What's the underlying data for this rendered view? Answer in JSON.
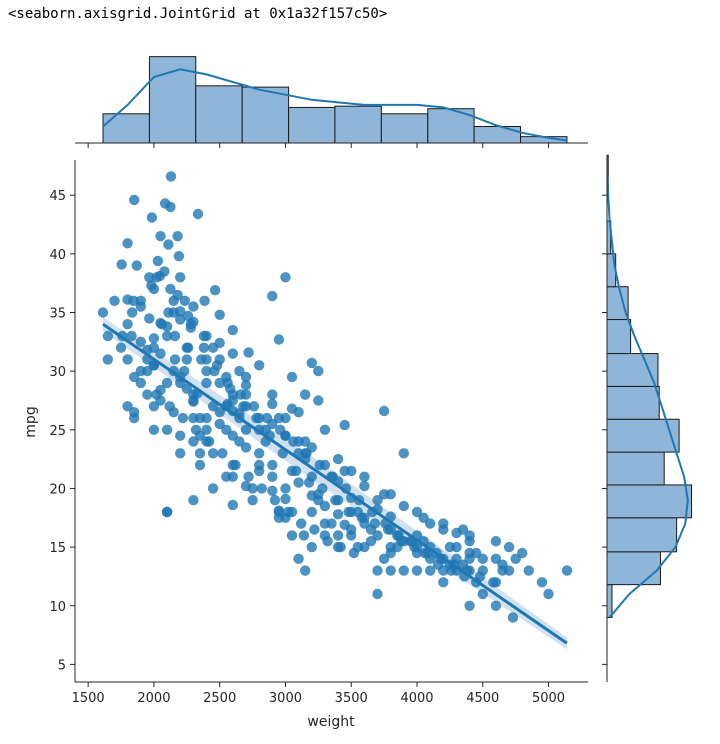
{
  "output_text": "<seaborn.axisgrid.JointGrid at 0x1a32f157c50>",
  "colors": {
    "accent": "#1f77b4",
    "hist_fill": "#8fb6d9",
    "ci_band": "#c6d9ec",
    "axis": "#262626"
  },
  "chart_data": {
    "type": "scatter",
    "title": "",
    "xlabel": "weight",
    "ylabel": "mpg",
    "xlim": [
      1400,
      5300
    ],
    "ylim": [
      3.5,
      48
    ],
    "xticks": [
      1500,
      2000,
      2500,
      3000,
      3500,
      4000,
      4500,
      5000
    ],
    "yticks": [
      5,
      10,
      15,
      20,
      25,
      30,
      35,
      40,
      45
    ],
    "regression": {
      "x": [
        1613,
        5140
      ],
      "y": [
        34.0,
        6.8
      ],
      "ci_halfwidth": [
        1.0,
        0.55
      ]
    },
    "marginal_x": {
      "type": "histogram+kde",
      "bin_edges": [
        1613,
        1966,
        2318,
        2671,
        3024,
        3376,
        3729,
        4082,
        4434,
        4787,
        5140
      ],
      "counts": [
        23,
        68,
        45,
        44,
        28,
        29,
        23,
        27,
        13,
        5
      ],
      "kde": [
        [
          1613,
          13
        ],
        [
          1800,
          30
        ],
        [
          2000,
          52
        ],
        [
          2200,
          58
        ],
        [
          2400,
          54
        ],
        [
          2600,
          48
        ],
        [
          2800,
          42
        ],
        [
          3000,
          38
        ],
        [
          3200,
          34
        ],
        [
          3400,
          32
        ],
        [
          3600,
          30
        ],
        [
          3800,
          30
        ],
        [
          4000,
          30
        ],
        [
          4200,
          28
        ],
        [
          4400,
          22
        ],
        [
          4600,
          14
        ],
        [
          4800,
          8
        ],
        [
          5000,
          4
        ],
        [
          5140,
          2
        ]
      ]
    },
    "marginal_y": {
      "type": "histogram+kde",
      "bin_edges": [
        9.0,
        11.8,
        14.6,
        17.5,
        20.3,
        23.1,
        25.9,
        28.7,
        31.5,
        34.4,
        37.2,
        40.0,
        42.8,
        45.6,
        48.4
      ],
      "counts": [
        4,
        43,
        56,
        68,
        46,
        58,
        42,
        41,
        19,
        17,
        7,
        3,
        0,
        1
      ],
      "kde": [
        [
          9,
          2
        ],
        [
          11,
          18
        ],
        [
          13,
          40
        ],
        [
          15,
          55
        ],
        [
          17,
          63
        ],
        [
          19,
          65
        ],
        [
          21,
          62
        ],
        [
          23,
          56
        ],
        [
          25,
          50
        ],
        [
          27,
          44
        ],
        [
          29,
          38
        ],
        [
          31,
          30
        ],
        [
          33,
          22
        ],
        [
          35,
          15
        ],
        [
          37,
          10
        ],
        [
          39,
          6
        ],
        [
          41,
          4
        ],
        [
          43,
          2
        ],
        [
          45,
          1
        ],
        [
          46.6,
          0.5
        ]
      ]
    },
    "points": [
      [
        2130,
        46.6
      ],
      [
        1850,
        44.6
      ],
      [
        2085,
        44.3
      ],
      [
        2125,
        44.0
      ],
      [
        1985,
        43.1
      ],
      [
        2335,
        43.4
      ],
      [
        2050,
        41.5
      ],
      [
        2180,
        41.5
      ],
      [
        1800,
        40.9
      ],
      [
        2110,
        40.8
      ],
      [
        2190,
        39.8
      ],
      [
        2030,
        39.4
      ],
      [
        1755,
        39.1
      ],
      [
        1870,
        39.0
      ],
      [
        3000,
        38.0
      ],
      [
        2045,
        38.1
      ],
      [
        1965,
        38.0
      ],
      [
        2020,
        38.0
      ],
      [
        2465,
        36.9
      ],
      [
        2125,
        37.0
      ],
      [
        1980,
        37.3
      ],
      [
        2900,
        36.4
      ],
      [
        1800,
        36.1
      ],
      [
        1845,
        36.0
      ],
      [
        2150,
        36.0
      ],
      [
        2235,
        36.0
      ],
      [
        2385,
        36.0
      ],
      [
        2110,
        35.0
      ],
      [
        1835,
        35.0
      ],
      [
        1613,
        35.0
      ],
      [
        2200,
        35.1
      ],
      [
        2500,
        34.8
      ],
      [
        1965,
        34.5
      ],
      [
        2260,
        34.7
      ],
      [
        2050,
        34.1
      ],
      [
        2300,
        34.2
      ],
      [
        1800,
        34.0
      ],
      [
        2200,
        34.4
      ],
      [
        2600,
        33.5
      ],
      [
        2400,
        33.0
      ],
      [
        1760,
        33.0
      ],
      [
        2100,
        33.8
      ],
      [
        2280,
        33.7
      ],
      [
        2000,
        32.8
      ],
      [
        2950,
        32.7
      ],
      [
        2500,
        32.4
      ],
      [
        2380,
        32.0
      ],
      [
        2600,
        31.5
      ],
      [
        1950,
        31.8
      ],
      [
        1800,
        31.0
      ],
      [
        2160,
        31.0
      ],
      [
        2720,
        31.6
      ],
      [
        1649,
        31.0
      ],
      [
        1950,
        30.0
      ],
      [
        2230,
        30.0
      ],
      [
        2000,
        30.5
      ],
      [
        2800,
        30.5
      ],
      [
        2400,
        30.0
      ],
      [
        3200,
        30.7
      ],
      [
        2500,
        29.0
      ],
      [
        1850,
        29.5
      ],
      [
        3050,
        29.5
      ],
      [
        2200,
        29.0
      ],
      [
        2700,
        28.8
      ],
      [
        3250,
        30.0
      ],
      [
        2300,
        28.0
      ],
      [
        2600,
        28.0
      ],
      [
        2050,
        28.4
      ],
      [
        3150,
        28.0
      ],
      [
        2330,
        28.1
      ],
      [
        2300,
        27.4
      ],
      [
        2000,
        27.0
      ],
      [
        2560,
        27.2
      ],
      [
        2900,
        27.2
      ],
      [
        2700,
        27.0
      ],
      [
        3250,
        27.5
      ],
      [
        2600,
        26.6
      ],
      [
        3050,
        26.8
      ],
      [
        3750,
        26.6
      ],
      [
        2400,
        26.0
      ],
      [
        1850,
        26.0
      ],
      [
        2300,
        26.0
      ],
      [
        2650,
        26.4
      ],
      [
        2950,
        26.0
      ],
      [
        2500,
        25.5
      ],
      [
        3450,
        25.4
      ],
      [
        2100,
        25.0
      ],
      [
        2400,
        25.0
      ],
      [
        2800,
        25.0
      ],
      [
        3000,
        24.5
      ],
      [
        2400,
        24.0
      ],
      [
        2300,
        24.0
      ],
      [
        2650,
        24.0
      ],
      [
        3100,
        24.0
      ],
      [
        2700,
        23.5
      ],
      [
        2200,
        23.0
      ],
      [
        2450,
        23.0
      ],
      [
        2800,
        23.0
      ],
      [
        3150,
        23.0
      ],
      [
        3900,
        23.0
      ],
      [
        2350,
        22.0
      ],
      [
        2800,
        22.0
      ],
      [
        2900,
        22.0
      ],
      [
        3300,
        22.0
      ],
      [
        3500,
        21.5
      ],
      [
        2600,
        21.0
      ],
      [
        2900,
        21.0
      ],
      [
        3200,
        21.0
      ],
      [
        3400,
        20.6
      ],
      [
        2700,
        20.2
      ],
      [
        3000,
        20.0
      ],
      [
        3600,
        20.2
      ],
      [
        2450,
        20.0
      ],
      [
        2900,
        19.8
      ],
      [
        3200,
        19.4
      ],
      [
        3500,
        19.2
      ],
      [
        2300,
        19.0
      ],
      [
        3000,
        19.1
      ],
      [
        3250,
        19.0
      ],
      [
        3700,
        19.0
      ],
      [
        2600,
        18.6
      ],
      [
        3900,
        18.5
      ],
      [
        2950,
        18.1
      ],
      [
        3500,
        18.0
      ],
      [
        3700,
        18.2
      ],
      [
        2100,
        18.0
      ],
      [
        3050,
        18.0
      ],
      [
        3400,
        17.8
      ],
      [
        3800,
        17.6
      ],
      [
        3600,
        17.0
      ],
      [
        3300,
        17.0
      ],
      [
        4100,
        17.0
      ],
      [
        3000,
        17.5
      ],
      [
        3450,
        16.9
      ],
      [
        3800,
        16.5
      ],
      [
        4200,
        16.5
      ],
      [
        3050,
        16.0
      ],
      [
        3500,
        16.0
      ],
      [
        4000,
        16.0
      ],
      [
        4300,
        16.2
      ],
      [
        3650,
        15.5
      ],
      [
        3900,
        15.5
      ],
      [
        3200,
        15.0
      ],
      [
        4300,
        15.0
      ],
      [
        3400,
        15.0
      ],
      [
        3600,
        15.0
      ],
      [
        3850,
        15.0
      ],
      [
        4100,
        15.0
      ],
      [
        4400,
        15.5
      ],
      [
        4700,
        15.0
      ],
      [
        3800,
        14.5
      ],
      [
        4100,
        14.0
      ],
      [
        4200,
        14.0
      ],
      [
        4300,
        14.0
      ],
      [
        4400,
        14.0
      ],
      [
        4500,
        14.0
      ],
      [
        4600,
        14.0
      ],
      [
        4750,
        14.0
      ],
      [
        3100,
        14.0
      ],
      [
        3700,
        13.0
      ],
      [
        3800,
        13.0
      ],
      [
        3900,
        13.0
      ],
      [
        4000,
        13.0
      ],
      [
        4100,
        13.0
      ],
      [
        4200,
        13.0
      ],
      [
        4300,
        13.0
      ],
      [
        4400,
        13.0
      ],
      [
        4500,
        13.0
      ],
      [
        4650,
        13.0
      ],
      [
        4700,
        13.0
      ],
      [
        5140,
        13.0
      ],
      [
        3150,
        13.0
      ],
      [
        4450,
        12.0
      ],
      [
        4600,
        12.0
      ],
      [
        4950,
        12.0
      ],
      [
        5000,
        11.0
      ],
      [
        3700,
        11.0
      ],
      [
        4500,
        11.0
      ],
      [
        4400,
        10.0
      ],
      [
        4600,
        10.0
      ],
      [
        4730,
        9.0
      ],
      [
        2100,
        18.0
      ],
      [
        3140,
        16.0
      ],
      [
        3400,
        16.0
      ],
      [
        4000,
        15.0
      ],
      [
        4200,
        12.0
      ],
      [
        4400,
        14.5
      ],
      [
        1850,
        26.5
      ],
      [
        2000,
        25.0
      ],
      [
        2200,
        29.5
      ],
      [
        2400,
        31.0
      ],
      [
        1900,
        36.0
      ],
      [
        2250,
        32.0
      ],
      [
        2600,
        24.5
      ],
      [
        2800,
        21.5
      ],
      [
        3200,
        18.0
      ],
      [
        3400,
        19.0
      ],
      [
        3600,
        17.5
      ],
      [
        2700,
        28.0
      ],
      [
        2150,
        30.0
      ],
      [
        1900,
        29.0
      ],
      [
        1830,
        33.0
      ],
      [
        2050,
        31.5
      ],
      [
        2350,
        26.0
      ],
      [
        2550,
        25.0
      ],
      [
        2750,
        20.0
      ],
      [
        3100,
        20.5
      ],
      [
        3300,
        18.5
      ],
      [
        3500,
        16.5
      ],
      [
        3800,
        15.0
      ],
      [
        4000,
        14.5
      ],
      [
        4250,
        13.5
      ],
      [
        2450,
        27.0
      ],
      [
        2650,
        26.0
      ],
      [
        3000,
        26.0
      ],
      [
        2850,
        24.0
      ],
      [
        3150,
        22.5
      ],
      [
        3350,
        21.0
      ],
      [
        2200,
        24.5
      ],
      [
        2000,
        32.0
      ],
      [
        2150,
        35.0
      ],
      [
        2250,
        31.0
      ],
      [
        2900,
        25.5
      ],
      [
        3100,
        23.0
      ],
      [
        2600,
        22.0
      ],
      [
        3250,
        19.5
      ],
      [
        3550,
        18.0
      ],
      [
        3700,
        16.0
      ],
      [
        3950,
        15.5
      ],
      [
        4150,
        14.5
      ],
      [
        4350,
        13.5
      ],
      [
        2350,
        24.5
      ],
      [
        2050,
        27.5
      ],
      [
        1950,
        31.0
      ],
      [
        1900,
        30.0
      ],
      [
        2100,
        29.0
      ],
      [
        2300,
        27.5
      ],
      [
        2500,
        26.5
      ],
      [
        2700,
        25.0
      ],
      [
        3050,
        21.5
      ],
      [
        2950,
        18.0
      ],
      [
        3300,
        16.0
      ],
      [
        3550,
        15.0
      ],
      [
        3750,
        14.0
      ],
      [
        2550,
        29.5
      ],
      [
        2450,
        32.0
      ],
      [
        2650,
        30.0
      ],
      [
        2200,
        38.0
      ],
      [
        2000,
        37.0
      ],
      [
        1900,
        35.5
      ],
      [
        2100,
        33.0
      ],
      [
        2400,
        29.0
      ],
      [
        2600,
        27.5
      ],
      [
        2800,
        26.0
      ],
      [
        3000,
        24.5
      ],
      [
        3200,
        23.5
      ],
      [
        3400,
        22.5
      ],
      [
        3600,
        21.0
      ],
      [
        3800,
        19.5
      ],
      [
        4000,
        18.0
      ],
      [
        4200,
        17.0
      ],
      [
        4400,
        16.0
      ],
      [
        4600,
        15.5
      ],
      [
        4800,
        14.5
      ],
      [
        2000,
        30.5
      ],
      [
        2250,
        28.5
      ],
      [
        2550,
        27.0
      ],
      [
        2850,
        25.0
      ],
      [
        3150,
        24.0
      ],
      [
        3450,
        21.5
      ],
      [
        3750,
        19.5
      ],
      [
        4050,
        17.5
      ],
      [
        4350,
        16.5
      ],
      [
        2300,
        35.5
      ],
      [
        2500,
        31.0
      ],
      [
        2700,
        29.5
      ],
      [
        2900,
        28.0
      ],
      [
        3100,
        26.5
      ],
      [
        3300,
        25.0
      ],
      [
        1950,
        28.0
      ],
      [
        2150,
        26.5
      ],
      [
        2350,
        23.0
      ],
      [
        2550,
        21.0
      ],
      [
        2750,
        19.0
      ],
      [
        2950,
        17.5
      ],
      [
        3350,
        17.0
      ],
      [
        3650,
        16.5
      ],
      [
        3850,
        16.0
      ],
      [
        4050,
        15.5
      ],
      [
        4250,
        15.0
      ],
      [
        4450,
        14.5
      ],
      [
        4650,
        13.5
      ],
      [
        4850,
        13.0
      ],
      [
        1800,
        27.0
      ],
      [
        1700,
        36.0
      ],
      [
        1750,
        32.0
      ],
      [
        1650,
        33.0
      ],
      [
        1900,
        32.5
      ],
      [
        2080,
        38.5
      ],
      [
        2180,
        36.5
      ],
      [
        2280,
        34.0
      ],
      [
        2380,
        33.0
      ],
      [
        2480,
        30.5
      ],
      [
        2580,
        28.5
      ],
      [
        2680,
        27.0
      ],
      [
        2780,
        26.0
      ],
      [
        2880,
        24.5
      ],
      [
        2980,
        23.0
      ],
      [
        3080,
        21.5
      ],
      [
        3180,
        20.5
      ],
      [
        3280,
        20.0
      ],
      [
        3380,
        19.0
      ],
      [
        3480,
        18.0
      ],
      [
        3580,
        17.5
      ],
      [
        3680,
        17.0
      ],
      [
        3780,
        16.5
      ],
      [
        3880,
        15.5
      ],
      [
        3980,
        15.0
      ],
      [
        4080,
        14.5
      ],
      [
        4180,
        14.0
      ],
      [
        4280,
        13.5
      ],
      [
        4380,
        13.0
      ],
      [
        4480,
        12.5
      ],
      [
        4580,
        12.0
      ],
      [
        2020,
        28.0
      ],
      [
        2120,
        27.0
      ],
      [
        2220,
        26.0
      ],
      [
        2320,
        25.0
      ],
      [
        2420,
        24.0
      ],
      [
        2520,
        23.0
      ],
      [
        2620,
        22.0
      ],
      [
        2720,
        21.0
      ],
      [
        2820,
        20.0
      ],
      [
        2920,
        19.0
      ],
      [
        3020,
        18.0
      ],
      [
        3120,
        17.0
      ],
      [
        3220,
        16.5
      ],
      [
        3320,
        15.5
      ],
      [
        3420,
        15.0
      ],
      [
        3520,
        14.5
      ],
      [
        2060,
        34.0
      ],
      [
        2160,
        33.0
      ],
      [
        2260,
        32.0
      ],
      [
        2360,
        31.0
      ],
      [
        2460,
        30.0
      ],
      [
        2560,
        29.0
      ],
      [
        2660,
        28.0
      ],
      [
        2760,
        27.0
      ],
      [
        2860,
        26.0
      ],
      [
        2960,
        25.0
      ],
      [
        3060,
        24.0
      ],
      [
        3160,
        23.0
      ],
      [
        3260,
        22.0
      ],
      [
        3360,
        21.0
      ],
      [
        3460,
        20.0
      ],
      [
        3560,
        19.0
      ],
      [
        3660,
        18.0
      ],
      [
        3760,
        17.0
      ],
      [
        3860,
        16.0
      ],
      [
        3960,
        15.5
      ],
      [
        4060,
        14.5
      ],
      [
        4160,
        13.5
      ],
      [
        4260,
        13.0
      ],
      [
        4360,
        12.5
      ]
    ]
  }
}
